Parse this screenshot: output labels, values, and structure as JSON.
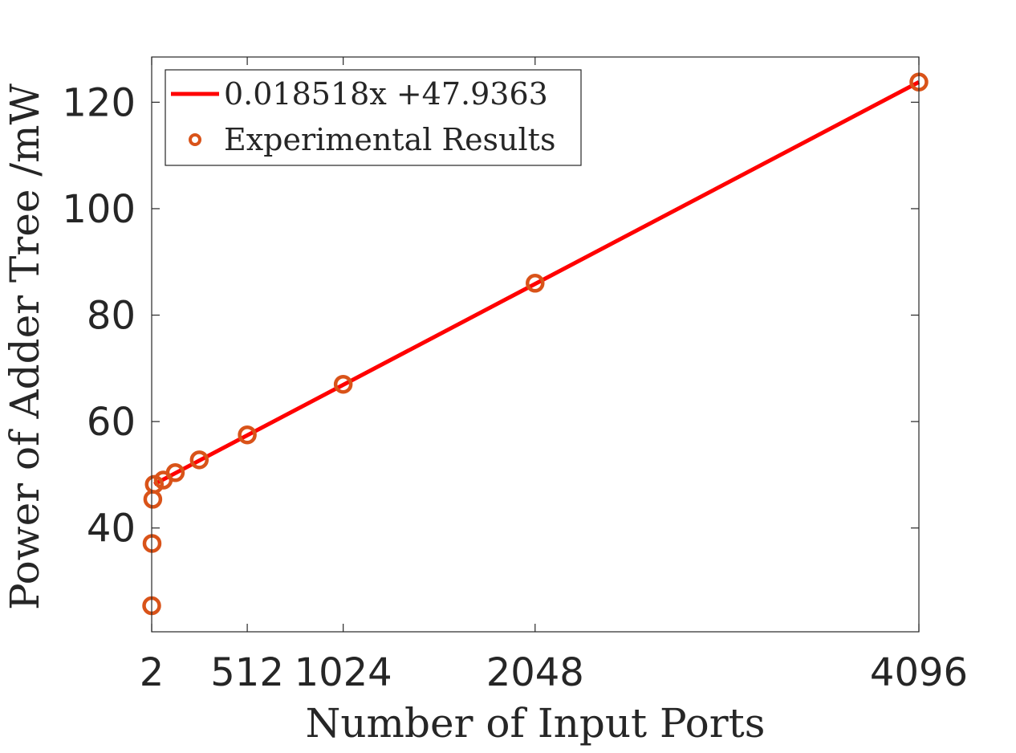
{
  "chart_data": {
    "type": "scatter",
    "xlabel": "Number of Input Ports",
    "ylabel": "Power of Adder Tree /mW",
    "xlim": [
      2,
      4096
    ],
    "ylim": [
      20.5,
      128.5
    ],
    "x_ticks": [
      2,
      512,
      1024,
      2048,
      4096
    ],
    "x_tick_labels": [
      "2",
      "512",
      "1024",
      "2048",
      "4096"
    ],
    "y_ticks": [
      40,
      60,
      80,
      100,
      120
    ],
    "y_tick_labels": [
      "40",
      "60",
      "80",
      "100",
      "120"
    ],
    "grid": false,
    "legend_position": "top-left",
    "series": [
      {
        "name": "0.018518x +47.9363",
        "kind": "line",
        "color": "#ff0000",
        "x": [
          16,
          4096
        ],
        "y": [
          48.23,
          123.79
        ]
      },
      {
        "name": "Experimental Results",
        "kind": "scatter",
        "color": "#d95319",
        "x": [
          2,
          4,
          8,
          16,
          64,
          128,
          256,
          512,
          1024,
          2048,
          4096
        ],
        "y": [
          25.4,
          37.1,
          45.4,
          48.2,
          49.0,
          50.4,
          52.8,
          57.5,
          67.0,
          86.0,
          123.8
        ]
      }
    ]
  }
}
